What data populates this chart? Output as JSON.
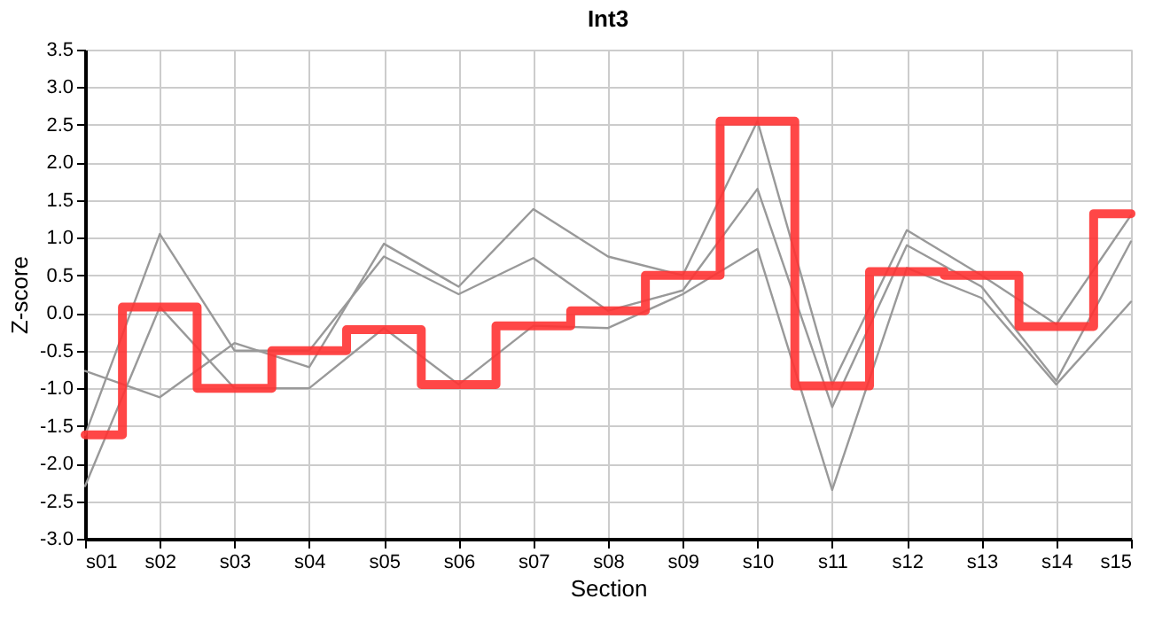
{
  "chart_data": {
    "type": "line",
    "title": "Int3",
    "xlabel": "Section",
    "ylabel": "Z-score",
    "categories": [
      "s01",
      "s02",
      "s03",
      "s04",
      "s05",
      "s06",
      "s07",
      "s08",
      "s09",
      "s10",
      "s11",
      "s12",
      "s13",
      "s14",
      "s15"
    ],
    "series": [
      {
        "type": "line",
        "color": "#999999",
        "values": [
          -0.77,
          -1.12,
          -0.4,
          -0.72,
          0.92,
          0.35,
          1.38,
          0.75,
          0.5,
          2.55,
          -0.95,
          1.1,
          0.5,
          -0.15,
          1.3
        ]
      },
      {
        "type": "line",
        "color": "#999999",
        "values": [
          -1.62,
          1.05,
          -0.5,
          -0.5,
          0.75,
          0.25,
          0.73,
          0.03,
          0.3,
          1.65,
          -1.25,
          0.9,
          0.35,
          -0.9,
          0.95
        ]
      },
      {
        "type": "line",
        "color": "#999999",
        "values": [
          -2.3,
          0.08,
          -1.0,
          -1.0,
          -0.2,
          -0.95,
          -0.17,
          -0.2,
          0.25,
          0.85,
          -2.35,
          0.6,
          0.2,
          -0.95,
          0.15
        ]
      },
      {
        "type": "step",
        "color": "#ff3333",
        "values": [
          -1.62,
          0.08,
          -1.0,
          -0.5,
          -0.22,
          -0.95,
          -0.17,
          0.03,
          0.5,
          2.55,
          -0.97,
          0.55,
          0.5,
          -0.18,
          1.32
        ]
      }
    ],
    "ylim": [
      -3.0,
      3.5
    ],
    "yticks": [
      {
        "value": -3,
        "label": "-3.0"
      },
      {
        "value": -2.5,
        "label": "-2.5"
      },
      {
        "value": -2,
        "label": "-2.0"
      },
      {
        "value": -1.5,
        "label": "-1.5"
      },
      {
        "value": -1,
        "label": "-1.0"
      },
      {
        "value": -0.5,
        "label": "-0.5"
      },
      {
        "value": 0,
        "label": "0.0"
      },
      {
        "value": 0.5,
        "label": "0.5"
      },
      {
        "value": 1,
        "label": "1.0"
      },
      {
        "value": 1.5,
        "label": "1.5"
      },
      {
        "value": 2,
        "label": "2.0"
      },
      {
        "value": 2.5,
        "label": "2.5"
      },
      {
        "value": 3,
        "label": "3.0"
      },
      {
        "value": 3.5,
        "label": "3.5"
      }
    ],
    "grid": true,
    "legend": false
  }
}
